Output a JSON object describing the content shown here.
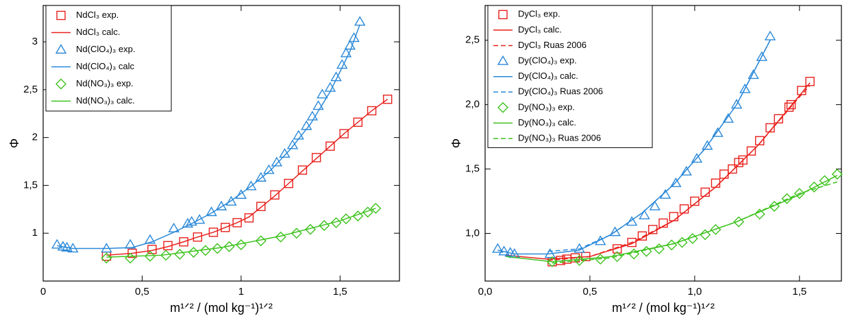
{
  "chart_data": [
    {
      "type": "scatter-line",
      "xlabel": "m¹ᐟ²  /  (mol kg⁻¹)¹ᐟ²",
      "ylabel": "Φ",
      "xlim": [
        0,
        1.8
      ],
      "ylim": [
        0.5,
        3.38
      ],
      "xticks": [
        0,
        {
          "value": 0.5,
          "label": "0,5"
        },
        1,
        {
          "value": 1.5,
          "label": "1,5"
        }
      ],
      "yticks": [
        1,
        {
          "value": 1.5,
          "label": "1,5"
        },
        2,
        {
          "value": 2.5,
          "label": "2,5"
        },
        3
      ],
      "legend": "upper left",
      "series": [
        {
          "name": "NdCl₃ exp.",
          "color": "#e8201c",
          "marker": "square",
          "x": [
            0.32,
            0.45,
            0.55,
            0.63,
            0.71,
            0.78,
            0.86,
            0.92,
            0.98,
            1.04,
            1.1,
            1.17,
            1.24,
            1.31,
            1.38,
            1.45,
            1.52,
            1.59,
            1.66,
            1.74
          ],
          "values": [
            0.76,
            0.79,
            0.83,
            0.87,
            0.91,
            0.96,
            1.01,
            1.06,
            1.11,
            1.16,
            1.28,
            1.4,
            1.52,
            1.66,
            1.79,
            1.91,
            2.04,
            2.16,
            2.28,
            2.4
          ]
        },
        {
          "name": "NdCl₃ calc.",
          "color": "#e8201c",
          "line": "solid",
          "x": [
            0.32,
            0.45,
            0.55,
            0.63,
            0.71,
            0.78,
            0.86,
            0.92,
            0.98,
            1.04,
            1.1,
            1.17,
            1.24,
            1.31,
            1.38,
            1.45,
            1.52,
            1.59,
            1.66,
            1.74
          ],
          "values": [
            0.77,
            0.79,
            0.82,
            0.86,
            0.91,
            0.96,
            1.01,
            1.06,
            1.11,
            1.17,
            1.27,
            1.39,
            1.52,
            1.65,
            1.78,
            1.91,
            2.04,
            2.16,
            2.28,
            2.4
          ]
        },
        {
          "name": "Nd(ClO₄)₃ exp.",
          "color": "#2a88d8",
          "marker": "triangle",
          "x": [
            0.07,
            0.1,
            0.12,
            0.15,
            0.32,
            0.44,
            0.54,
            0.66,
            0.73,
            0.75,
            0.79,
            0.85,
            0.9,
            0.95,
            1.0,
            1.05,
            1.1,
            1.14,
            1.18,
            1.22,
            1.26,
            1.29,
            1.33,
            1.36,
            1.39,
            1.41,
            1.45,
            1.48,
            1.51,
            1.53,
            1.55,
            1.57,
            1.6
          ],
          "values": [
            0.88,
            0.86,
            0.85,
            0.84,
            0.84,
            0.88,
            0.93,
            1.05,
            1.1,
            1.12,
            1.14,
            1.22,
            1.28,
            1.33,
            1.4,
            1.49,
            1.58,
            1.66,
            1.74,
            1.83,
            1.92,
            2.02,
            2.12,
            2.22,
            2.33,
            2.45,
            2.52,
            2.63,
            2.76,
            2.88,
            2.96,
            3.04,
            3.21
          ]
        },
        {
          "name": "Nd(ClO₄)₃ calc",
          "color": "#2a88d8",
          "line": "solid",
          "x": [
            0.07,
            0.15,
            0.32,
            0.45,
            0.55,
            0.65,
            0.75,
            0.85,
            0.95,
            1.05,
            1.15,
            1.25,
            1.35,
            1.45,
            1.55,
            1.6
          ],
          "values": [
            0.87,
            0.84,
            0.84,
            0.85,
            0.91,
            1.0,
            1.1,
            1.21,
            1.34,
            1.49,
            1.66,
            1.88,
            2.14,
            2.48,
            2.9,
            3.18
          ]
        },
        {
          "name": "Nd(NO₃)₃ exp.",
          "color": "#3cc21c",
          "marker": "diamond",
          "x": [
            0.32,
            0.44,
            0.54,
            0.62,
            0.69,
            0.76,
            0.82,
            0.88,
            0.94,
            1.0,
            1.1,
            1.2,
            1.28,
            1.35,
            1.42,
            1.48,
            1.53,
            1.59,
            1.64,
            1.68
          ],
          "values": [
            0.74,
            0.74,
            0.76,
            0.77,
            0.78,
            0.8,
            0.82,
            0.84,
            0.86,
            0.88,
            0.92,
            0.96,
            1.0,
            1.04,
            1.08,
            1.11,
            1.15,
            1.18,
            1.22,
            1.26
          ]
        },
        {
          "name": "Nd(NO₃)₃ calc.",
          "color": "#3cc21c",
          "line": "solid",
          "x": [
            0.32,
            0.6,
            0.9,
            1.2,
            1.5,
            1.68
          ],
          "values": [
            0.75,
            0.77,
            0.85,
            0.97,
            1.13,
            1.26
          ]
        }
      ]
    },
    {
      "type": "scatter-line",
      "xlabel": "m¹ᐟ²  /  (mol kg⁻¹)¹ᐟ²",
      "ylabel": "Φ",
      "xlim": [
        0,
        1.7
      ],
      "ylim": [
        0.63,
        2.77
      ],
      "xticks": [
        {
          "value": 0,
          "label": "0,0"
        },
        {
          "value": 0.5,
          "label": "0,5"
        },
        {
          "value": 1,
          "label": "1,0"
        },
        {
          "value": 1.5,
          "label": "1,5"
        }
      ],
      "yticks": [
        {
          "value": 1,
          "label": "1,0"
        },
        {
          "value": 1.5,
          "label": "1,5"
        },
        {
          "value": 2,
          "label": "2,0"
        },
        {
          "value": 2.5,
          "label": "2,5"
        }
      ],
      "legend": "upper left",
      "series": [
        {
          "name": "DyCl₃ exp.",
          "color": "#e8201c",
          "marker": "square",
          "x": [
            0.32,
            0.36,
            0.39,
            0.43,
            0.48,
            0.63,
            0.7,
            0.75,
            0.8,
            0.85,
            0.9,
            0.95,
            1.0,
            1.05,
            1.1,
            1.14,
            1.18,
            1.21,
            1.23,
            1.27,
            1.31,
            1.36,
            1.4,
            1.45,
            1.46,
            1.51,
            1.55
          ],
          "values": [
            0.78,
            0.79,
            0.8,
            0.81,
            0.82,
            0.88,
            0.93,
            0.98,
            1.03,
            1.08,
            1.13,
            1.19,
            1.25,
            1.32,
            1.39,
            1.46,
            1.5,
            1.55,
            1.57,
            1.64,
            1.72,
            1.82,
            1.89,
            1.98,
            2.0,
            2.11,
            2.18
          ]
        },
        {
          "name": "DyCl₃ calc.",
          "color": "#e8201c",
          "line": "solid",
          "x": [
            0.1,
            0.3,
            0.5,
            0.7,
            0.9,
            1.1,
            1.3,
            1.5,
            1.55
          ],
          "values": [
            0.83,
            0.8,
            0.82,
            0.92,
            1.1,
            1.36,
            1.68,
            2.07,
            2.17
          ]
        },
        {
          "name": "DyCl₃ Ruas 2006",
          "color": "#e8201c",
          "line": "dashed",
          "x": [
            0.3,
            0.5,
            0.7,
            0.9,
            1.1,
            1.3,
            1.5,
            1.55
          ],
          "values": [
            0.79,
            0.82,
            0.93,
            1.1,
            1.36,
            1.68,
            2.06,
            2.15
          ]
        },
        {
          "name": "Dy(ClO₄)₃ exp.",
          "color": "#2a88d8",
          "marker": "triangle",
          "x": [
            0.06,
            0.09,
            0.12,
            0.14,
            0.31,
            0.45,
            0.55,
            0.62,
            0.7,
            0.76,
            0.81,
            0.86,
            0.91,
            0.96,
            1.01,
            1.06,
            1.11,
            1.16,
            1.2,
            1.24,
            1.28,
            1.32,
            1.36
          ],
          "values": [
            0.88,
            0.86,
            0.85,
            0.84,
            0.84,
            0.88,
            0.94,
            1.01,
            1.09,
            1.14,
            1.21,
            1.3,
            1.39,
            1.48,
            1.58,
            1.68,
            1.78,
            1.89,
            2.0,
            2.12,
            2.23,
            2.37,
            2.53
          ]
        },
        {
          "name": "Dy(ClO₄)₃ calc.",
          "color": "#2a88d8",
          "line": "solid",
          "x": [
            0.06,
            0.14,
            0.3,
            0.45,
            0.6,
            0.75,
            0.9,
            1.05,
            1.2,
            1.36
          ],
          "values": [
            0.87,
            0.84,
            0.84,
            0.87,
            0.99,
            1.16,
            1.38,
            1.66,
            2.0,
            2.5
          ]
        },
        {
          "name": "Dy(ClO₄)₃ Ruas 2006",
          "color": "#2a88d8",
          "line": "dashed",
          "x": [
            0.3,
            0.45,
            0.6,
            0.75,
            0.9,
            1.05,
            1.2,
            1.36
          ],
          "values": [
            0.86,
            0.88,
            0.99,
            1.16,
            1.38,
            1.66,
            2.0,
            2.5
          ]
        },
        {
          "name": "Dy(NO₃)₃ exp.",
          "color": "#3cc21c",
          "marker": "diamond",
          "x": [
            0.32,
            0.45,
            0.55,
            0.63,
            0.71,
            0.77,
            0.83,
            0.89,
            0.94,
            0.99,
            1.05,
            1.1,
            1.21,
            1.31,
            1.38,
            1.44,
            1.5,
            1.57,
            1.62,
            1.68
          ],
          "values": [
            0.78,
            0.79,
            0.8,
            0.82,
            0.84,
            0.86,
            0.88,
            0.91,
            0.93,
            0.96,
            0.99,
            1.03,
            1.09,
            1.15,
            1.21,
            1.27,
            1.31,
            1.36,
            1.41,
            1.46
          ]
        },
        {
          "name": "Dy(NO₃)₃ calc.",
          "color": "#3cc21c",
          "line": "solid",
          "x": [
            0.1,
            0.32,
            0.6,
            0.9,
            1.2,
            1.5,
            1.68
          ],
          "values": [
            0.82,
            0.78,
            0.82,
            0.92,
            1.09,
            1.3,
            1.45
          ]
        },
        {
          "name": "Dy(NO₃)₃ Ruas 2006",
          "color": "#3cc21c",
          "line": "dashed",
          "x": [
            0.32,
            0.6,
            0.9,
            1.2,
            1.5,
            1.68
          ],
          "values": [
            0.77,
            0.81,
            0.92,
            1.09,
            1.31,
            1.4
          ]
        }
      ]
    }
  ]
}
